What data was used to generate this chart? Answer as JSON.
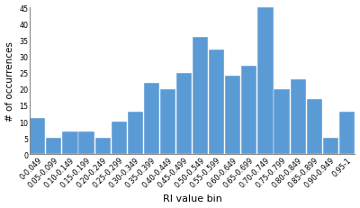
{
  "categories": [
    "0-0.049",
    "0.05-0.099",
    "0.10-0.149",
    "0.15-0.199",
    "0.20-0.249",
    "0.25-0.299",
    "0.30-0.349",
    "0.35-0.399",
    "0.40-0.449",
    "0.45-0.499",
    "0.50-0.549",
    "0.55-0.599",
    "0.60-0.649",
    "0.65-0.699",
    "0.70-0.749",
    "0.75-0.799",
    "0.80-0.849",
    "0.85-0.899",
    "0.90-0.949",
    "0.95-1"
  ],
  "values": [
    11,
    5,
    7,
    7,
    5,
    10,
    13,
    22,
    20,
    25,
    36,
    32,
    24,
    27,
    45,
    20,
    23,
    17,
    5,
    13
  ],
  "bar_color": "#5b9bd5",
  "ylabel": "# of occurrences",
  "xlabel": "RI value bin",
  "ylim": [
    0,
    45
  ],
  "yticks": [
    0,
    5,
    10,
    15,
    20,
    25,
    30,
    35,
    40,
    45
  ],
  "axis_fontsize": 7.5,
  "tick_fontsize": 5.8,
  "xlabel_fontsize": 8,
  "bar_edgecolor": "#ffffff",
  "background_color": "#ffffff"
}
